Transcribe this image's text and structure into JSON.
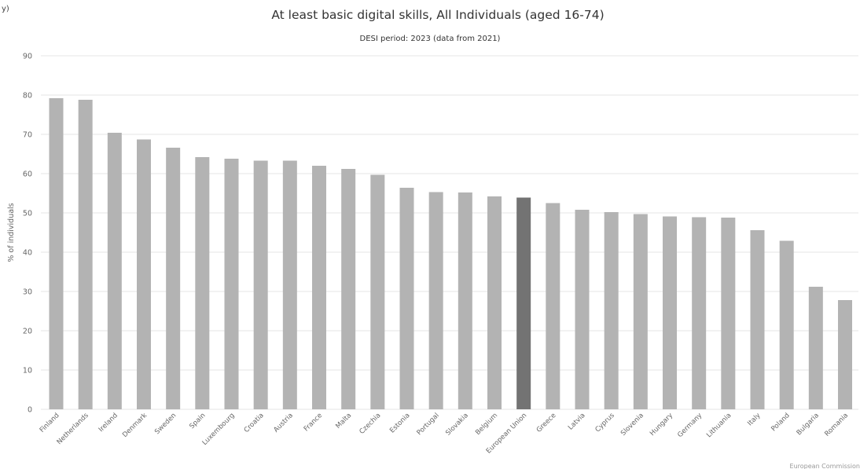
{
  "corner_mark": "y)",
  "credit": "European Commission",
  "chart_data": {
    "type": "bar",
    "title": "At least basic digital skills, All Individuals (aged 16-74)",
    "subtitle": "DESI period: 2023 (data from 2021)",
    "ylabel": "% of individuals",
    "xlabel": "",
    "ylim": [
      0,
      90
    ],
    "yticks": [
      0,
      10,
      20,
      30,
      40,
      50,
      60,
      70,
      80,
      90
    ],
    "grid": true,
    "legend": "none",
    "bar_color": "#b3b3b3",
    "highlight_color": "#737373",
    "highlight_category": "European Union",
    "categories": [
      "Finland",
      "Netherlands",
      "Ireland",
      "Denmark",
      "Sweden",
      "Spain",
      "Luxembourg",
      "Croatia",
      "Austria",
      "France",
      "Malta",
      "Czechia",
      "Estonia",
      "Portugal",
      "Slovakia",
      "Belgium",
      "European Union",
      "Greece",
      "Latvia",
      "Cyprus",
      "Slovenia",
      "Hungary",
      "Germany",
      "Lithuania",
      "Italy",
      "Poland",
      "Bulgaria",
      "Romania"
    ],
    "values": [
      79.2,
      78.8,
      70.4,
      68.7,
      66.6,
      64.2,
      63.8,
      63.3,
      63.3,
      62.0,
      61.2,
      59.7,
      56.4,
      55.3,
      55.2,
      54.2,
      53.9,
      52.5,
      50.8,
      50.2,
      49.7,
      49.1,
      48.9,
      48.8,
      45.6,
      42.9,
      31.2,
      27.8
    ]
  }
}
